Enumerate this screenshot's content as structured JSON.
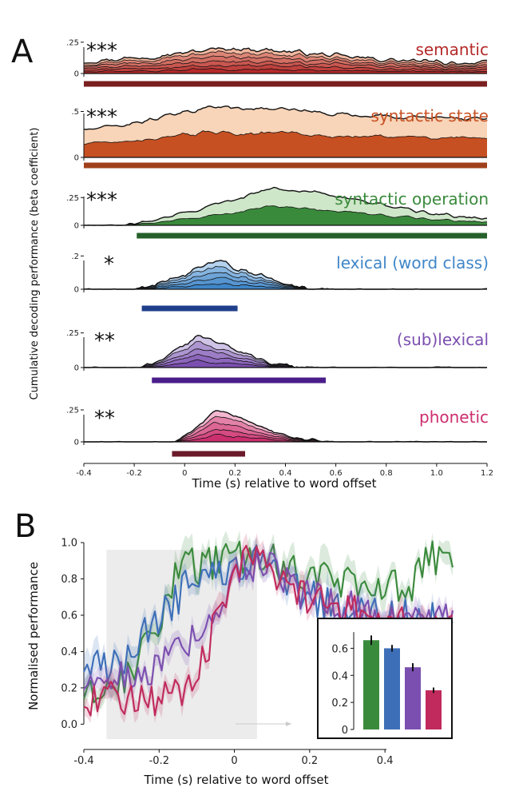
{
  "figure": {
    "panel_a_letter": "A",
    "panel_b_letter": "B"
  },
  "chart_data": [
    {
      "type": "area",
      "panel": "A",
      "ylabel": "Cumulative decoding performance (beta coefficient)",
      "xlabel": "Time (s) relative to word offset",
      "xlim": [
        -0.4,
        1.2
      ],
      "xticks": [
        "-0.4",
        "-0.2",
        "0",
        "0.2",
        "0.4",
        "0.6",
        "0.8",
        "1.0",
        "1.2"
      ],
      "xtick_values": [
        -0.4,
        -0.2,
        0,
        0.2,
        0.4,
        0.6,
        0.8,
        1.0,
        1.2
      ],
      "rows": [
        {
          "label": "semantic",
          "stars": "***",
          "color": "#b52a2a",
          "light": "#f2b8a0",
          "bar_color": "#7a1f1f",
          "ymax": 0.3,
          "yticks": [
            ".25",
            "0"
          ],
          "ytick_values": [
            0.25,
            0
          ],
          "sig": [
            -0.4,
            1.2
          ],
          "layers": 6,
          "profile": {
            "onset": -0.4,
            "peak_t": 0.15,
            "peak": 0.2,
            "base": 0.1,
            "tail": 0.08,
            "noise": 0.025
          }
        },
        {
          "label": "syntactic state",
          "stars": "***",
          "color": "#c75022",
          "light": "#f8d4b8",
          "bar_color": "#a0401a",
          "ymax": 0.6,
          "yticks": [
            ".5",
            "0"
          ],
          "ytick_values": [
            0.5,
            0
          ],
          "sig": [
            -0.4,
            1.2
          ],
          "layers": 2,
          "profile": {
            "onset": -0.4,
            "peak_t": 0.1,
            "peak": 0.55,
            "base": 0.3,
            "tail": 0.42,
            "noise": 0.03
          }
        },
        {
          "label": "syntactic operation",
          "stars": "***",
          "color": "#3a8a3c",
          "light": "#cfe7c9",
          "bar_color": "#25602a",
          "ymax": 0.36,
          "yticks": [
            ".25",
            "0"
          ],
          "ytick_values": [
            0.25,
            0
          ],
          "sig": [
            -0.19,
            1.2
          ],
          "layers": 2,
          "profile": {
            "onset": -0.25,
            "peak_t": 0.33,
            "peak": 0.33,
            "base": 0.0,
            "tail": 0.035,
            "noise": 0.018
          }
        },
        {
          "label": "lexical (word class)",
          "stars": "*",
          "color": "#3f86c8",
          "light": "#b4d2ee",
          "bar_color": "#1f3f8a",
          "ymax": 0.24,
          "yticks": [
            ".2",
            "0"
          ],
          "ytick_values": [
            0.2,
            0
          ],
          "sig": [
            -0.17,
            0.21
          ],
          "layers": 5,
          "profile": {
            "onset": -0.2,
            "peak_t": 0.12,
            "peak": 0.16,
            "base": 0.0,
            "tail": 0.0,
            "noise": 0.025
          }
        },
        {
          "label": "(sub)lexical",
          "stars": "**",
          "color": "#7b4fb0",
          "light": "#cfc3e6",
          "bar_color": "#4a1d8a",
          "ymax": 0.3,
          "yticks": [
            ".25",
            "0"
          ],
          "ytick_values": [
            0.25,
            0
          ],
          "sig": [
            -0.13,
            0.56
          ],
          "layers": 5,
          "profile": {
            "onset": -0.18,
            "peak_t": 0.05,
            "peak": 0.22,
            "base": 0.0,
            "tail": 0.0,
            "noise": 0.02
          }
        },
        {
          "label": "phonetic",
          "stars": "**",
          "color": "#cc2f6e",
          "light": "#f3b8cf",
          "bar_color": "#6a1a2a",
          "ymax": 0.3,
          "yticks": [
            ".25",
            "0"
          ],
          "ytick_values": [
            0.25,
            0
          ],
          "sig": [
            -0.05,
            0.24
          ],
          "layers": 5,
          "profile": {
            "onset": -0.05,
            "peak_t": 0.12,
            "peak": 0.24,
            "base": 0.0,
            "tail": 0.0,
            "noise": 0.015
          }
        }
      ]
    },
    {
      "type": "line",
      "panel": "B",
      "ylabel": "Normalised performance",
      "xlabel": "Time (s) relative to word offset",
      "xlim": [
        -0.4,
        0.58
      ],
      "ylim": [
        -0.06,
        1.04
      ],
      "xticks": [
        "-0.4",
        "-0.2",
        "0",
        "0.2",
        "0.4"
      ],
      "xtick_values": [
        -0.4,
        -0.2,
        0,
        0.2,
        0.4
      ],
      "yticks": [
        "0.0",
        "0.2",
        "0.4",
        "0.6",
        "0.8",
        "1.0"
      ],
      "ytick_values": [
        0,
        0.2,
        0.4,
        0.6,
        0.8,
        1.0
      ],
      "shaded_window": [
        -0.34,
        0.06
      ],
      "series": [
        {
          "name": "syntactic operation",
          "color": "#3a8a3c",
          "key_t": [
            -0.4,
            -0.3,
            -0.22,
            -0.17,
            -0.14,
            -0.1,
            0.0,
            0.05,
            0.08,
            0.12,
            0.25,
            0.35,
            0.45,
            0.48,
            0.5,
            0.53,
            0.56,
            0.58
          ],
          "key_v": [
            0.15,
            0.25,
            0.45,
            0.72,
            0.92,
            0.85,
            0.92,
            0.88,
            0.95,
            0.86,
            0.8,
            0.78,
            0.74,
            0.78,
            0.88,
            0.92,
            0.9,
            0.82
          ]
        },
        {
          "name": "lexical (word class)",
          "color": "#3d6fb8",
          "key_t": [
            -0.4,
            -0.3,
            -0.25,
            -0.2,
            -0.15,
            -0.1,
            0.0,
            0.05,
            0.1,
            0.15,
            0.25,
            0.35,
            0.45,
            0.55,
            0.58
          ],
          "key_v": [
            0.3,
            0.35,
            0.5,
            0.6,
            0.7,
            0.82,
            0.88,
            0.9,
            0.92,
            0.75,
            0.65,
            0.62,
            0.6,
            0.56,
            0.52
          ]
        },
        {
          "name": "(sub)lexical",
          "color": "#7b4fb0",
          "key_t": [
            -0.4,
            -0.3,
            -0.22,
            -0.18,
            -0.1,
            -0.05,
            0.0,
            0.05,
            0.1,
            0.15,
            0.25,
            0.35,
            0.45,
            0.55,
            0.58
          ],
          "key_v": [
            0.2,
            0.3,
            0.28,
            0.35,
            0.5,
            0.6,
            0.85,
            0.88,
            0.85,
            0.75,
            0.68,
            0.62,
            0.58,
            0.6,
            0.58
          ]
        },
        {
          "name": "phonetic",
          "color": "#c02a5c",
          "key_t": [
            -0.4,
            -0.3,
            -0.2,
            -0.15,
            -0.1,
            -0.05,
            0.0,
            0.05,
            0.1,
            0.15,
            0.25,
            0.35,
            0.45,
            0.55,
            0.58
          ],
          "key_v": [
            0.1,
            0.15,
            0.12,
            0.18,
            0.25,
            0.55,
            0.85,
            0.92,
            0.85,
            0.7,
            0.68,
            0.58,
            0.55,
            0.52,
            0.55
          ]
        }
      ],
      "inset": {
        "type": "bar",
        "yticks": [
          "0.6",
          "0.4",
          "0.2",
          "0"
        ],
        "ytick_values": [
          0.6,
          0.4,
          0.2,
          0
        ],
        "ylim": [
          0,
          0.75
        ],
        "values": [
          0.66,
          0.6,
          0.46,
          0.29
        ],
        "errors": [
          0.035,
          0.025,
          0.03,
          0.02
        ],
        "colors": [
          "#3a8a3c",
          "#3d6fb8",
          "#7b4fb0",
          "#c02a5c"
        ]
      }
    }
  ]
}
